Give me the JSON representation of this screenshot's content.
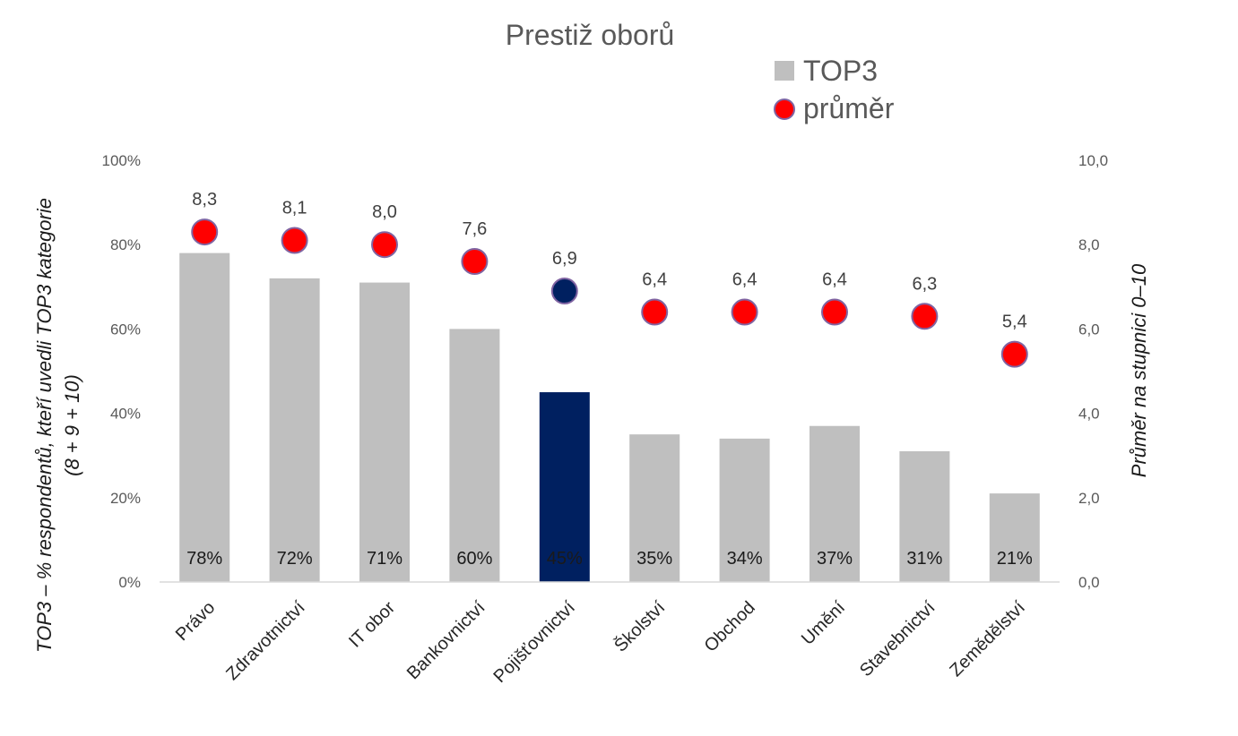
{
  "chart_data": {
    "type": "bar",
    "title": "Prestiž oborů",
    "categories": [
      "Právo",
      "Zdravotnictví",
      "IT obor",
      "Bankovnictví",
      "Pojišťovnictví",
      "Školství",
      "Obchod",
      "Umění",
      "Stavebnictví",
      "Zemědělství"
    ],
    "series": [
      {
        "name": "TOP3",
        "kind": "bar",
        "axis": "left",
        "values": [
          78,
          72,
          71,
          60,
          45,
          35,
          34,
          37,
          31,
          21
        ],
        "labels": [
          "78%",
          "72%",
          "71%",
          "60%",
          "45%",
          "35%",
          "34%",
          "37%",
          "31%",
          "21%"
        ],
        "color": "#bfbfbf",
        "highlight_index": 4,
        "highlight_color": "#002060"
      },
      {
        "name": "průměr",
        "kind": "scatter",
        "axis": "right",
        "values": [
          8.3,
          8.1,
          8.0,
          7.6,
          6.9,
          6.4,
          6.4,
          6.4,
          6.3,
          5.4
        ],
        "labels": [
          "8,3",
          "8,1",
          "8,0",
          "7,6",
          "6,9",
          "6,4",
          "6,4",
          "6,4",
          "6,3",
          "5,4"
        ],
        "color": "#ff0000",
        "highlight_index": 4,
        "highlight_color": "#002060"
      }
    ],
    "y_left": {
      "label_lines": [
        "TOP3 – % respondentů, kteří uvedli TOP3 kategorie",
        "(8 + 9 + 10)"
      ],
      "range": [
        0,
        100
      ],
      "ticks": [
        "0%",
        "20%",
        "40%",
        "60%",
        "80%",
        "100%"
      ]
    },
    "y_right": {
      "label": "Průměr na stupnici 0–10",
      "range": [
        0,
        10
      ],
      "ticks": [
        "0,0",
        "2,0",
        "4,0",
        "6,0",
        "8,0",
        "10,0"
      ]
    },
    "grid": false,
    "legend_position": "top-right"
  }
}
